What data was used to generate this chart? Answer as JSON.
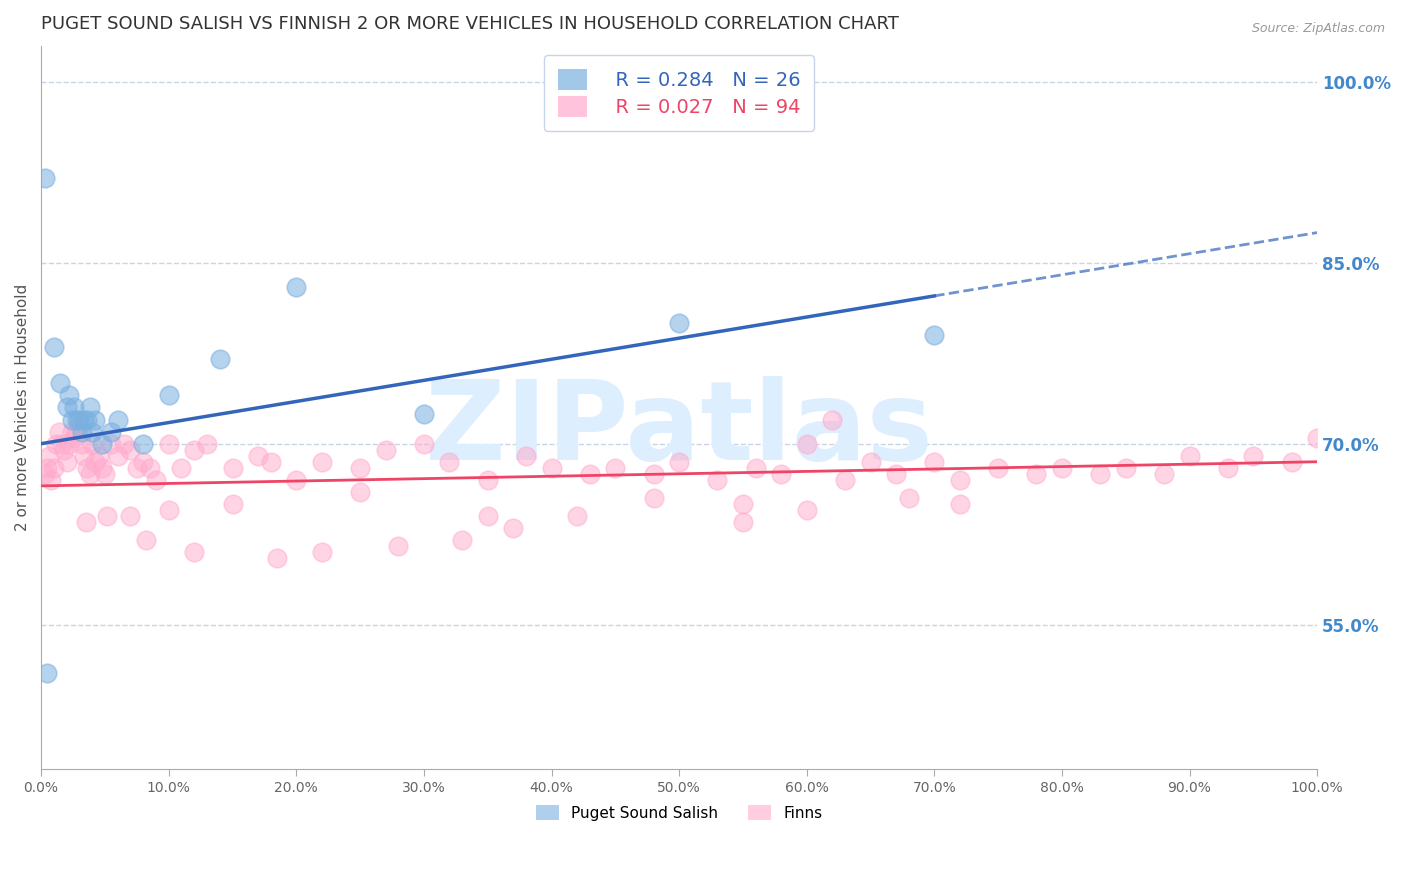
{
  "title": "PUGET SOUND SALISH VS FINNISH 2 OR MORE VEHICLES IN HOUSEHOLD CORRELATION CHART",
  "source": "Source: ZipAtlas.com",
  "ylabel": "2 or more Vehicles in Household",
  "legend_label_blue": "Puget Sound Salish",
  "legend_label_pink": "Finns",
  "legend_r_blue": "R = 0.284",
  "legend_n_blue": "N = 26",
  "legend_r_pink": "R = 0.027",
  "legend_n_pink": "N = 94",
  "xlim": [
    0.0,
    100.0
  ],
  "ylim": [
    43.0,
    103.0
  ],
  "yticks_right": [
    55.0,
    70.0,
    85.0,
    100.0
  ],
  "xticks": [
    0.0,
    10.0,
    20.0,
    30.0,
    40.0,
    50.0,
    60.0,
    70.0,
    80.0,
    90.0,
    100.0
  ],
  "grid_color": "#c8d4e8",
  "background_color": "#ffffff",
  "blue_color": "#7ab0e0",
  "pink_color": "#ffaacc",
  "blue_line_color": "#3366bb",
  "pink_line_color": "#ee4466",
  "title_color": "#333333",
  "axis_label_color": "#555555",
  "right_tick_color": "#4488cc",
  "watermark_color": "#ddeeff",
  "blue_scatter": {
    "x": [
      0.5,
      1.0,
      1.5,
      2.0,
      2.2,
      2.4,
      2.6,
      2.8,
      3.0,
      3.2,
      3.4,
      3.6,
      3.8,
      4.0,
      4.2,
      4.8,
      5.5,
      6.0,
      8.0,
      10.0,
      14.0,
      20.0,
      30.0,
      50.0,
      70.0,
      0.3
    ],
    "y": [
      51.0,
      78.0,
      75.0,
      73.0,
      74.0,
      72.0,
      73.0,
      72.0,
      72.0,
      71.0,
      72.0,
      72.0,
      73.0,
      71.0,
      72.0,
      70.0,
      71.0,
      72.0,
      70.0,
      74.0,
      77.0,
      83.0,
      72.5,
      80.0,
      79.0,
      92.0
    ]
  },
  "pink_scatter": {
    "x": [
      0.3,
      0.5,
      0.6,
      0.8,
      1.0,
      1.2,
      1.4,
      1.6,
      1.8,
      2.0,
      2.2,
      2.4,
      2.6,
      2.8,
      3.0,
      3.2,
      3.4,
      3.6,
      3.8,
      4.0,
      4.2,
      4.5,
      4.8,
      5.0,
      5.5,
      6.0,
      6.5,
      7.0,
      7.5,
      8.0,
      8.5,
      9.0,
      10.0,
      11.0,
      12.0,
      13.0,
      15.0,
      17.0,
      18.0,
      20.0,
      22.0,
      25.0,
      27.0,
      30.0,
      32.0,
      35.0,
      38.0,
      40.0,
      43.0,
      45.0,
      48.0,
      50.0,
      53.0,
      56.0,
      58.0,
      60.0,
      63.0,
      65.0,
      67.0,
      70.0,
      72.0,
      75.0,
      78.0,
      80.0,
      83.0,
      85.0,
      88.0,
      90.0,
      93.0,
      95.0,
      98.0,
      100.0,
      42.0,
      55.0,
      62.0,
      68.0,
      3.5,
      5.2,
      8.2,
      12.0,
      18.5,
      22.0,
      28.0,
      33.0,
      37.0,
      55.0,
      60.0,
      72.0,
      48.0,
      35.0,
      25.0,
      15.0,
      10.0,
      7.0
    ],
    "y": [
      67.5,
      68.0,
      69.0,
      67.0,
      68.0,
      70.0,
      71.0,
      70.0,
      69.5,
      68.5,
      70.0,
      71.0,
      70.5,
      71.0,
      71.5,
      70.0,
      69.0,
      68.0,
      67.5,
      70.0,
      68.5,
      69.0,
      68.0,
      67.5,
      70.0,
      69.0,
      70.0,
      69.5,
      68.0,
      68.5,
      68.0,
      67.0,
      70.0,
      68.0,
      69.5,
      70.0,
      68.0,
      69.0,
      68.5,
      67.0,
      68.5,
      68.0,
      69.5,
      70.0,
      68.5,
      67.0,
      69.0,
      68.0,
      67.5,
      68.0,
      67.5,
      68.5,
      67.0,
      68.0,
      67.5,
      70.0,
      67.0,
      68.5,
      67.5,
      68.5,
      67.0,
      68.0,
      67.5,
      68.0,
      67.5,
      68.0,
      67.5,
      69.0,
      68.0,
      69.0,
      68.5,
      70.5,
      64.0,
      65.0,
      72.0,
      65.5,
      63.5,
      64.0,
      62.0,
      61.0,
      60.5,
      61.0,
      61.5,
      62.0,
      63.0,
      63.5,
      64.5,
      65.0,
      65.5,
      64.0,
      66.0,
      65.0,
      64.5,
      64.0
    ]
  },
  "blue_line": {
    "x_start": 0.0,
    "x_end": 100.0,
    "y_start": 70.0,
    "y_end": 87.5,
    "solid_end_x": 70.0
  },
  "pink_line": {
    "x_start": 0.0,
    "x_end": 100.0,
    "y_start": 66.5,
    "y_end": 68.5
  }
}
